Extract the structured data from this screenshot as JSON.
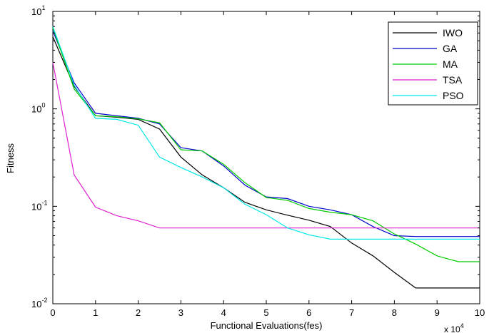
{
  "chart_data": {
    "type": "line",
    "title": "",
    "xlabel": "Functional Evaluations(fes)",
    "ylabel": "Fitness",
    "x_multiplier_label": "x 10",
    "x_multiplier_exponent": "4",
    "xlim": [
      0,
      10
    ],
    "ylim": [
      0.01,
      10
    ],
    "yscale": "log",
    "grid": false,
    "legend_position": "top-right",
    "x_ticks": [
      0,
      1,
      2,
      3,
      4,
      5,
      6,
      7,
      8,
      9,
      10
    ],
    "x_tick_labels": [
      "0",
      "1",
      "2",
      "3",
      "4",
      "5",
      "6",
      "7",
      "8",
      "9",
      "10"
    ],
    "y_ticks": [
      0.01,
      0.1,
      1,
      10
    ],
    "y_tick_labels": [
      {
        "base": "10",
        "exp": "-2"
      },
      {
        "base": "10",
        "exp": "-1"
      },
      {
        "base": "10",
        "exp": "0"
      },
      {
        "base": "10",
        "exp": "1"
      }
    ],
    "series": [
      {
        "name": "IWO",
        "color": "#000000",
        "x": [
          0,
          0.5,
          1,
          1.5,
          2,
          2.5,
          3,
          3.5,
          4,
          4.5,
          5,
          5.5,
          6,
          6.5,
          7,
          7.5,
          8,
          8.5,
          9,
          9.5,
          10
        ],
        "y": [
          5.5,
          1.7,
          0.85,
          0.82,
          0.78,
          0.62,
          0.32,
          0.21,
          0.155,
          0.11,
          0.092,
          0.081,
          0.072,
          0.062,
          0.042,
          0.031,
          0.021,
          0.0145,
          0.0145,
          0.0145,
          0.0145
        ]
      },
      {
        "name": "GA",
        "color": "#0000cc",
        "x": [
          0,
          0.5,
          1,
          1.5,
          2,
          2.5,
          3,
          3.5,
          4,
          4.5,
          5,
          5.5,
          6,
          6.5,
          7,
          7.5,
          8,
          8.5,
          9,
          9.5,
          10
        ],
        "y": [
          6.3,
          1.85,
          0.9,
          0.85,
          0.8,
          0.7,
          0.4,
          0.37,
          0.26,
          0.165,
          0.125,
          0.12,
          0.1,
          0.092,
          0.082,
          0.062,
          0.05,
          0.049,
          0.049,
          0.049,
          0.049
        ]
      },
      {
        "name": "MA",
        "color": "#00cc00",
        "x": [
          0,
          0.5,
          1,
          1.5,
          2,
          2.5,
          3,
          3.5,
          4,
          4.5,
          5,
          5.5,
          6,
          6.5,
          7,
          7.5,
          8,
          8.5,
          9,
          9.5,
          10
        ],
        "y": [
          6.8,
          1.6,
          0.85,
          0.83,
          0.79,
          0.72,
          0.38,
          0.37,
          0.27,
          0.175,
          0.123,
          0.115,
          0.095,
          0.087,
          0.082,
          0.071,
          0.052,
          0.041,
          0.031,
          0.027,
          0.027
        ]
      },
      {
        "name": "TSA",
        "color": "#e020d0",
        "x": [
          0,
          0.5,
          1,
          1.5,
          2,
          2.5,
          3,
          3.5,
          4,
          4.5,
          5,
          5.5,
          6,
          6.5,
          7,
          7.5,
          8,
          8.5,
          9,
          9.5,
          10
        ],
        "y": [
          3.0,
          0.21,
          0.098,
          0.08,
          0.071,
          0.06,
          0.06,
          0.06,
          0.06,
          0.06,
          0.06,
          0.06,
          0.06,
          0.06,
          0.06,
          0.06,
          0.06,
          0.06,
          0.06,
          0.06,
          0.06
        ]
      },
      {
        "name": "PSO",
        "color": "#00e8e8",
        "x": [
          0,
          0.5,
          1,
          1.5,
          2,
          2.5,
          3,
          3.5,
          4,
          4.5,
          5,
          5.5,
          6,
          6.5,
          7,
          7.5,
          8,
          8.5,
          9,
          9.5,
          10
        ],
        "y": [
          7.0,
          1.75,
          0.8,
          0.78,
          0.68,
          0.32,
          0.25,
          0.2,
          0.155,
          0.105,
          0.082,
          0.06,
          0.051,
          0.046,
          0.046,
          0.046,
          0.046,
          0.046,
          0.046,
          0.046,
          0.046
        ]
      }
    ]
  }
}
